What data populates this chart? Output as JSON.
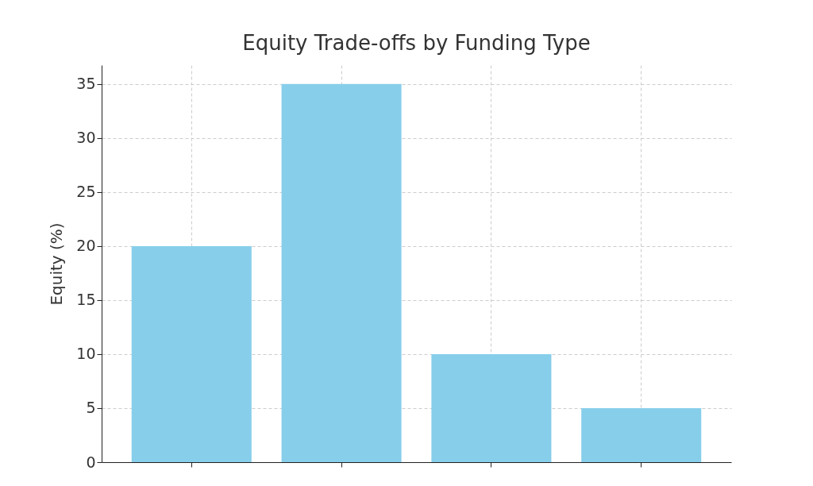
{
  "chart_data": {
    "type": "bar",
    "title": "Equity Trade-offs by Funding Type",
    "ylabel": "Equity (%)",
    "categories": [
      null,
      null,
      null,
      null
    ],
    "values": [
      20,
      35,
      10,
      5
    ],
    "color": "#87ceeb",
    "ylim": [
      0,
      36.75
    ],
    "yticks": [
      0,
      5,
      10,
      15,
      20,
      25,
      30,
      35
    ],
    "grid": true
  }
}
